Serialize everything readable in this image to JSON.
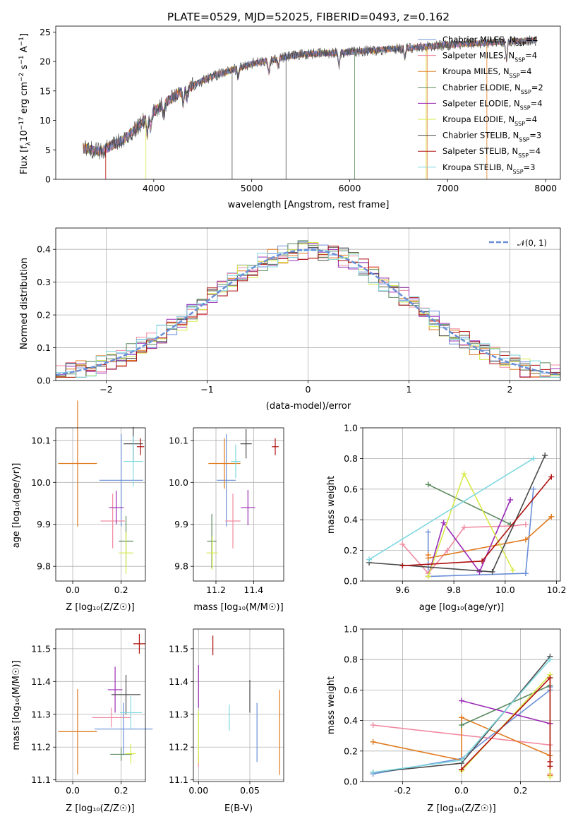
{
  "colors": {
    "Chabrier MILES": "#6a8fd8",
    "Salpeter MILES": "#f08aa0",
    "Kroupa MILES": "#e07b1f",
    "Chabrier ELODIE": "#5a8a5e",
    "Salpeter ELODIE": "#9b2cb5",
    "Kroupa ELODIE": "#d7ea4a",
    "Chabrier STELIB": "#4a4a4a",
    "Salpeter STELIB": "#b01010",
    "Kroupa STELIB": "#7fd8e0"
  },
  "chart_data": [
    {
      "type": "line",
      "title": "PLATE=0529, MJD=52025, FIBERID=0493, z=0.162",
      "xlabel": "wavelength [Angstrom, rest frame]",
      "ylabel_parts": [
        "Flux [f",
        "λ",
        "10",
        "−17",
        " erg cm",
        "−2",
        " s",
        "−1",
        " A",
        "−1",
        "]"
      ],
      "xlim": [
        3000,
        8150
      ],
      "ylim": [
        0,
        26
      ],
      "xticks": [
        4000,
        5000,
        6000,
        7000,
        8000
      ],
      "yticks": [
        0,
        5,
        10,
        15,
        20,
        25
      ],
      "x_range": [
        3280,
        7900
      ],
      "continuum_knots": [
        [
          3280,
          5.3
        ],
        [
          3450,
          4.7
        ],
        [
          3700,
          6.8
        ],
        [
          4000,
          11.5
        ],
        [
          4300,
          15.2
        ],
        [
          4600,
          17.5
        ],
        [
          5000,
          19.6
        ],
        [
          5500,
          21.2
        ],
        [
          6000,
          21.6
        ],
        [
          6500,
          22.2
        ],
        [
          7000,
          22.8
        ],
        [
          7500,
          23.3
        ],
        [
          7900,
          23.6
        ]
      ],
      "legend": {
        "placement": "right",
        "entries": [
          {
            "name": "Chabrier MILES",
            "n_ssp": "4"
          },
          {
            "name": "Salpeter MILES",
            "n_ssp": "4"
          },
          {
            "name": "Kroupa MILES",
            "n_ssp": "4"
          },
          {
            "name": "Chabrier ELODIE",
            "n_ssp": "2"
          },
          {
            "name": "Salpeter ELODIE",
            "n_ssp": "4"
          },
          {
            "name": "Kroupa ELODIE",
            "n_ssp": "4"
          },
          {
            "name": "Chabrier STELIB",
            "n_ssp": "3"
          },
          {
            "name": "Salpeter STELIB",
            "n_ssp": "4"
          },
          {
            "name": "Kroupa STELIB",
            "n_ssp": "3"
          }
        ],
        "n_ssp_prefix": "N",
        "n_ssp_subscript": "SSP"
      }
    },
    {
      "type": "histogram",
      "xlabel": "(data-model)/error",
      "ylabel": "Normed distribution",
      "xlim": [
        -2.5,
        2.5
      ],
      "ylim": [
        0,
        0.465
      ],
      "xticks": [
        -2,
        -1,
        0,
        1,
        2
      ],
      "yticks": [
        0.0,
        0.1,
        0.2,
        0.3,
        0.4
      ],
      "grid": true,
      "bin_edges_start": -2.5,
      "bin_width": 0.1,
      "reference_curve": {
        "name": "𝒩(0, 1)",
        "mean": 0,
        "sigma": 1,
        "style": "dashed"
      },
      "legend": {
        "placement": "top-right"
      }
    },
    {
      "type": "scatter",
      "xlabel": "Z [log₁₀(Z/Z☉)]",
      "ylabel": "age  [log₁₀(age/yr)]",
      "xlim": [
        -0.07,
        0.3
      ],
      "ylim": [
        9.765,
        10.13
      ],
      "xticks": [
        0.0,
        0.2
      ],
      "yticks": [
        9.8,
        9.9,
        10.0,
        10.1
      ],
      "grid": true,
      "points": [
        {
          "series": "Chabrier MILES",
          "x": 0.2,
          "y": 10.005,
          "xerr": 0.09,
          "yerr": 0.11
        },
        {
          "series": "Salpeter MILES",
          "x": 0.165,
          "y": 9.908,
          "xerr": 0.05,
          "yerr": 0.065
        },
        {
          "series": "Kroupa MILES",
          "x": 0.02,
          "y": 10.045,
          "xerr": 0.08,
          "yerr": 0.15
        },
        {
          "series": "Chabrier ELODIE",
          "x": 0.22,
          "y": 9.86,
          "xerr": 0.03,
          "yerr": 0.06
        },
        {
          "series": "Salpeter ELODIE",
          "x": 0.18,
          "y": 9.94,
          "xerr": 0.03,
          "yerr": 0.04
        },
        {
          "series": "Kroupa ELODIE",
          "x": 0.22,
          "y": 9.832,
          "xerr": 0.03,
          "yerr": 0.05
        },
        {
          "series": "Chabrier STELIB",
          "x": 0.25,
          "y": 10.092,
          "xerr": 0.04,
          "yerr": 0.04
        },
        {
          "series": "Salpeter STELIB",
          "x": 0.28,
          "y": 10.085,
          "xerr": 0.015,
          "yerr": 0.02
        },
        {
          "series": "Kroupa STELIB",
          "x": 0.25,
          "y": 10.05,
          "xerr": 0.04,
          "yerr": 0.06
        }
      ]
    },
    {
      "type": "scatter",
      "xlabel": "mass [log₁₀(M/M☉)]",
      "ylabel": "",
      "xlim": [
        11.08,
        11.56
      ],
      "ylim": [
        9.765,
        10.13
      ],
      "xticks": [
        11.2,
        11.4
      ],
      "yticks": [
        9.8,
        9.9,
        10.0,
        10.1
      ],
      "grid": true,
      "points": [
        {
          "series": "Chabrier MILES",
          "x": 11.255,
          "y": 10.005,
          "xerr": 0.05,
          "yerr": 0.11
        },
        {
          "series": "Salpeter MILES",
          "x": 11.29,
          "y": 9.908,
          "xerr": 0.04,
          "yerr": 0.065
        },
        {
          "series": "Kroupa MILES",
          "x": 11.245,
          "y": 10.045,
          "xerr": 0.085,
          "yerr": 0.06
        },
        {
          "series": "Chabrier ELODIE",
          "x": 11.178,
          "y": 9.86,
          "xerr": 0.025,
          "yerr": 0.065
        },
        {
          "series": "Salpeter ELODIE",
          "x": 11.37,
          "y": 9.94,
          "xerr": 0.038,
          "yerr": 0.042
        },
        {
          "series": "Kroupa ELODIE",
          "x": 11.18,
          "y": 9.832,
          "xerr": 0.03,
          "yerr": 0.04
        },
        {
          "series": "Chabrier STELIB",
          "x": 11.36,
          "y": 10.092,
          "xerr": 0.03,
          "yerr": 0.035
        },
        {
          "series": "Salpeter STELIB",
          "x": 11.515,
          "y": 10.085,
          "xerr": 0.018,
          "yerr": 0.02
        },
        {
          "series": "Kroupa STELIB",
          "x": 11.305,
          "y": 10.05,
          "xerr": 0.025,
          "yerr": 0.04
        }
      ]
    },
    {
      "type": "line",
      "xlabel": "age  [log₁₀(age/yr)]",
      "ylabel": "mass weight",
      "xlim": [
        9.445,
        10.215
      ],
      "ylim": [
        0,
        1.0
      ],
      "xticks": [
        9.6,
        9.8,
        10.0,
        10.2
      ],
      "yticks": [
        0.0,
        0.2,
        0.4,
        0.6,
        0.8,
        1.0
      ],
      "grid": true,
      "series": [
        {
          "name": "Chabrier MILES",
          "x": [
            9.7,
            9.7,
            10.08,
            10.11
          ],
          "y": [
            0.32,
            0.03,
            0.05,
            0.6
          ]
        },
        {
          "name": "Salpeter MILES",
          "x": [
            9.6,
            9.7,
            9.775,
            9.84,
            10.03,
            10.08
          ],
          "y": [
            0.24,
            0.05,
            0.2,
            0.35,
            0.36,
            0.37
          ]
        },
        {
          "name": "Kroupa MILES",
          "x": [
            9.7,
            9.7,
            10.08,
            10.18
          ],
          "y": [
            0.17,
            0.15,
            0.27,
            0.42
          ]
        },
        {
          "name": "Chabrier ELODIE",
          "x": [
            9.7,
            10.02
          ],
          "y": [
            0.63,
            0.37
          ]
        },
        {
          "name": "Salpeter ELODIE",
          "x": [
            9.7,
            9.76,
            9.9,
            10.02
          ],
          "y": [
            0.03,
            0.38,
            0.06,
            0.53
          ]
        },
        {
          "name": "Kroupa ELODIE",
          "x": [
            9.7,
            9.84,
            10.03
          ],
          "y": [
            0.03,
            0.7,
            0.07
          ]
        },
        {
          "name": "Chabrier STELIB",
          "x": [
            9.47,
            9.95,
            10.155
          ],
          "y": [
            0.12,
            0.06,
            0.82
          ]
        },
        {
          "name": "Salpeter STELIB",
          "x": [
            9.6,
            9.91,
            10.18
          ],
          "y": [
            0.1,
            0.13,
            0.68
          ]
        },
        {
          "name": "Kroupa STELIB",
          "x": [
            9.47,
            10.11
          ],
          "y": [
            0.14,
            0.8
          ]
        }
      ]
    },
    {
      "type": "scatter",
      "xlabel": "Z [log₁₀(Z/Z☉)]",
      "ylabel": "mass [log₁₀(M/M☉)]",
      "xlim": [
        -0.07,
        0.3
      ],
      "ylim": [
        11.095,
        11.56
      ],
      "xticks": [
        0.0,
        0.2
      ],
      "yticks": [
        11.1,
        11.2,
        11.3,
        11.4,
        11.5
      ],
      "grid": true,
      "points": [
        {
          "series": "Chabrier MILES",
          "x": 0.21,
          "y": 11.255,
          "xerr": 0.12,
          "yerr": 0.08
        },
        {
          "series": "Salpeter MILES",
          "x": 0.16,
          "y": 11.29,
          "xerr": 0.08,
          "yerr": 0.03
        },
        {
          "series": "Kroupa MILES",
          "x": 0.02,
          "y": 11.247,
          "xerr": 0.08,
          "yerr": 0.13
        },
        {
          "series": "Chabrier ELODIE",
          "x": 0.2,
          "y": 11.178,
          "xerr": 0.045,
          "yerr": 0.02
        },
        {
          "series": "Salpeter ELODIE",
          "x": 0.175,
          "y": 11.375,
          "xerr": 0.03,
          "yerr": 0.07
        },
        {
          "series": "Kroupa ELODIE",
          "x": 0.24,
          "y": 11.18,
          "xerr": 0.02,
          "yerr": 0.03
        },
        {
          "series": "Chabrier STELIB",
          "x": 0.22,
          "y": 11.36,
          "xerr": 0.06,
          "yerr": 0.06
        },
        {
          "series": "Salpeter STELIB",
          "x": 0.275,
          "y": 11.515,
          "xerr": 0.025,
          "yerr": 0.03
        },
        {
          "series": "Kroupa STELIB",
          "x": 0.24,
          "y": 11.305,
          "xerr": 0.045,
          "yerr": 0.05
        }
      ]
    },
    {
      "type": "scatter",
      "xlabel": "E(B-V)",
      "ylabel": "",
      "xlim": [
        -0.005,
        0.083
      ],
      "ylim": [
        11.095,
        11.56
      ],
      "xticks": [
        0.0,
        0.05
      ],
      "yticks": [
        11.1,
        11.2,
        11.3,
        11.4,
        11.5
      ],
      "grid": true,
      "points": [
        {
          "series": "Chabrier MILES",
          "x": 0.057,
          "y": 11.245,
          "yerr": 0.09
        },
        {
          "series": "Kroupa MILES",
          "x": 0.079,
          "y": 11.245,
          "yerr": 0.13
        },
        {
          "series": "Salpeter MILES",
          "x": 0.0,
          "y": 11.16,
          "yerr": 0.02
        },
        {
          "series": "Salpeter ELODIE",
          "x": 0.0,
          "y": 11.385,
          "yerr": 0.065
        },
        {
          "series": "Kroupa ELODIE",
          "x": 0.0,
          "y": 11.23,
          "yerr": 0.08
        },
        {
          "series": "Chabrier STELIB",
          "x": 0.05,
          "y": 11.355,
          "yerr": 0.05
        },
        {
          "series": "Salpeter STELIB",
          "x": 0.014,
          "y": 11.51,
          "yerr": 0.03
        },
        {
          "series": "Kroupa STELIB",
          "x": 0.03,
          "y": 11.29,
          "yerr": 0.04
        }
      ]
    },
    {
      "type": "line",
      "xlabel": "Z [log₁₀(Z/Z☉)]",
      "ylabel": "mass weight",
      "xlim": [
        -0.335,
        0.335
      ],
      "ylim": [
        0,
        1.0
      ],
      "xticks": [
        -0.2,
        0.0,
        0.2
      ],
      "yticks": [
        0.0,
        0.2,
        0.4,
        0.6,
        0.8,
        1.0
      ],
      "grid": true,
      "series": [
        {
          "name": "Chabrier MILES",
          "x": [
            -0.3,
            0.0,
            0.3,
            0.3
          ],
          "y": [
            0.05,
            0.15,
            0.6,
            0.62
          ]
        },
        {
          "name": "Salpeter MILES",
          "x": [
            -0.3,
            0.3,
            0.3
          ],
          "y": [
            0.37,
            0.24,
            0.05
          ]
        },
        {
          "name": "Kroupa MILES",
          "x": [
            -0.3,
            0.0,
            0.0,
            0.3,
            0.3
          ],
          "y": [
            0.26,
            0.14,
            0.42,
            0.17,
            0.04
          ]
        },
        {
          "name": "Chabrier ELODIE",
          "x": [
            0.0,
            0.3
          ],
          "y": [
            0.37,
            0.63
          ]
        },
        {
          "name": "Salpeter ELODIE",
          "x": [
            0.0,
            0.3,
            0.3
          ],
          "y": [
            0.53,
            0.38,
            0.38
          ]
        },
        {
          "name": "Kroupa ELODIE",
          "x": [
            0.0,
            0.3,
            0.3
          ],
          "y": [
            0.07,
            0.7,
            0.03
          ]
        },
        {
          "name": "Chabrier STELIB",
          "x": [
            -0.3,
            0.0,
            0.3
          ],
          "y": [
            0.06,
            0.12,
            0.82
          ]
        },
        {
          "name": "Salpeter STELIB",
          "x": [
            0.0,
            0.3,
            0.3,
            0.3
          ],
          "y": [
            0.08,
            0.68,
            0.13,
            0.1
          ]
        },
        {
          "name": "Kroupa STELIB",
          "x": [
            -0.3,
            0.0,
            0.3
          ],
          "y": [
            0.06,
            0.14,
            0.8
          ]
        }
      ]
    }
  ]
}
